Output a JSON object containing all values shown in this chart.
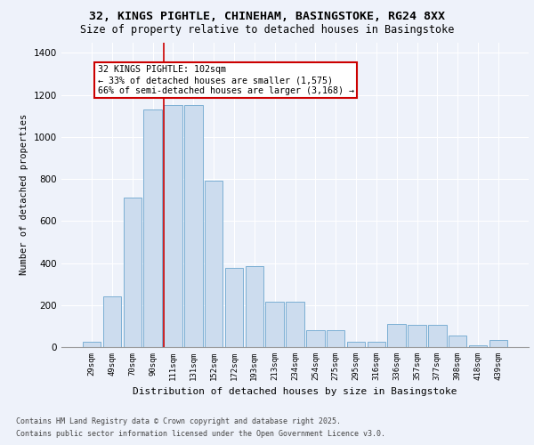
{
  "title_line1": "32, KINGS PIGHTLE, CHINEHAM, BASINGSTOKE, RG24 8XX",
  "title_line2": "Size of property relative to detached houses in Basingstoke",
  "xlabel": "Distribution of detached houses by size in Basingstoke",
  "ylabel": "Number of detached properties",
  "categories": [
    "29sqm",
    "49sqm",
    "70sqm",
    "90sqm",
    "111sqm",
    "131sqm",
    "152sqm",
    "172sqm",
    "193sqm",
    "213sqm",
    "234sqm",
    "254sqm",
    "275sqm",
    "295sqm",
    "316sqm",
    "336sqm",
    "357sqm",
    "377sqm",
    "398sqm",
    "418sqm",
    "439sqm"
  ],
  "values": [
    25,
    240,
    710,
    1130,
    1150,
    1150,
    790,
    375,
    385,
    215,
    215,
    80,
    80,
    25,
    25,
    110,
    105,
    105,
    55,
    10,
    35
  ],
  "bar_color": "#ccdcee",
  "bar_edge_color": "#7bafd4",
  "background_color": "#eef2fa",
  "grid_color": "#ffffff",
  "ylim": [
    0,
    1450
  ],
  "yticks": [
    0,
    200,
    400,
    600,
    800,
    1000,
    1200,
    1400
  ],
  "red_line_x": 3.55,
  "annotation_text": "32 KINGS PIGHTLE: 102sqm\n← 33% of detached houses are smaller (1,575)\n66% of semi-detached houses are larger (3,168) →",
  "annotation_box_color": "#ffffff",
  "annotation_box_edge": "#cc0000",
  "red_line_color": "#cc0000",
  "footer_line1": "Contains HM Land Registry data © Crown copyright and database right 2025.",
  "footer_line2": "Contains public sector information licensed under the Open Government Licence v3.0."
}
